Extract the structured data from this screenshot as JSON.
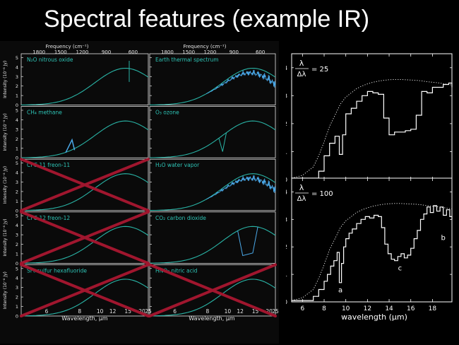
{
  "slide": {
    "title": "Spectral features (example IR)"
  },
  "colors": {
    "background": "#000000",
    "left_bg": "#0a0a0a",
    "axis": "#e6e6e6",
    "curve": "#29b3a5",
    "spectrum": "#4aa8e8",
    "cross": "#a0162e",
    "label": "#2ec4b6"
  },
  "left_figure": {
    "top_axis_label": "Frequency (cm⁻¹)",
    "top_ticks": [
      "1800",
      "1500",
      "1200",
      "900",
      "600"
    ],
    "bottom_axis_label": "Wavelength, μm",
    "bottom_ticks": [
      "6",
      "8",
      "10",
      "12",
      "15",
      "20",
      "25"
    ],
    "ylabel": "Intensity (10⁻⁸ Jy)",
    "y_ticks": [
      "0",
      "1",
      "2",
      "3",
      "4",
      "5"
    ],
    "panels": [
      {
        "label": "N₂O nitrous oxide",
        "crossed": false
      },
      {
        "label": "Earth thermal spectrum",
        "crossed": false
      },
      {
        "label": "CH₄ methane",
        "crossed": false
      },
      {
        "label": "O₃ ozone",
        "crossed": false
      },
      {
        "label": "CFC-11 freon-11",
        "crossed": true
      },
      {
        "label": "H₂O water vapor",
        "crossed": false
      },
      {
        "label": "CFC-12 freon-12",
        "crossed": true
      },
      {
        "label": "CO₂ carbon dioxide",
        "crossed": false
      },
      {
        "label": "SF₆ sulfur hexafluoride",
        "crossed": true
      },
      {
        "label": "HNO₃ nitric acid",
        "crossed": true
      }
    ]
  },
  "chart_data": {
    "type": "line",
    "xlabel": "wavelength (μm)",
    "x_ticks": [
      "6",
      "8",
      "10",
      "12",
      "14",
      "16",
      "18"
    ],
    "xlim": [
      5,
      19.8
    ],
    "ylim": [
      0,
      4.5
    ],
    "y_ticks": [
      "0",
      "1",
      "2",
      "3",
      "4"
    ],
    "panels": [
      {
        "resolution_label_num": "λ",
        "resolution_label_den": "Δλ",
        "resolution_value": "= 25",
        "series": [
          {
            "x": [
              5.0,
              6.0,
              7.0,
              7.5,
              8.0,
              8.5,
              9.0,
              9.5,
              10.0,
              10.5,
              11.0,
              11.5,
              12.0,
              12.5,
              13.0,
              13.5,
              14.0,
              14.5,
              15.0,
              15.5,
              16.0,
              16.5,
              17.0,
              17.5,
              18.0,
              18.5,
              19.0,
              19.5,
              19.8
            ],
            "y": [
              0.05,
              0.15,
              0.45,
              0.85,
              1.35,
              1.9,
              2.3,
              2.7,
              2.95,
              3.1,
              3.25,
              3.35,
              3.42,
              3.48,
              3.52,
              3.55,
              3.57,
              3.58,
              3.58,
              3.57,
              3.56,
              3.55,
              3.53,
              3.5,
              3.48,
              3.46,
              3.43,
              3.4,
              3.38
            ],
            "style": "dotted"
          },
          {
            "x": [
              5.0,
              7.5,
              8.0,
              8.5,
              9.0,
              9.4,
              9.7,
              10.0,
              10.5,
              11.0,
              11.5,
              12.0,
              12.5,
              13.0,
              13.5,
              14.0,
              14.5,
              15.0,
              15.5,
              16.0,
              16.5,
              17.0,
              17.5,
              18.0,
              18.5,
              19.0,
              19.5,
              19.8
            ],
            "y": [
              0.05,
              0.3,
              0.85,
              1.3,
              1.55,
              0.9,
              1.6,
              2.35,
              2.55,
              2.8,
              3.0,
              3.15,
              3.1,
              3.05,
              2.2,
              1.6,
              1.7,
              1.7,
              1.75,
              1.8,
              2.3,
              3.15,
              3.1,
              3.3,
              3.3,
              3.4,
              3.45,
              3.3
            ],
            "style": "step"
          }
        ],
        "annotations": []
      },
      {
        "resolution_label_num": "λ",
        "resolution_label_den": "Δλ",
        "resolution_value": "= 100",
        "series": [
          {
            "x": [
              5.0,
              6.0,
              7.0,
              7.5,
              8.0,
              8.5,
              9.0,
              9.5,
              10.0,
              10.5,
              11.0,
              11.5,
              12.0,
              12.5,
              13.0,
              13.5,
              14.0,
              14.5,
              15.0,
              15.5,
              16.0,
              16.5,
              17.0,
              17.5,
              18.0,
              18.5,
              19.0,
              19.5,
              19.8
            ],
            "y": [
              0.05,
              0.15,
              0.45,
              0.85,
              1.35,
              1.9,
              2.3,
              2.7,
              2.95,
              3.1,
              3.25,
              3.35,
              3.42,
              3.48,
              3.52,
              3.55,
              3.57,
              3.58,
              3.58,
              3.57,
              3.56,
              3.55,
              3.53,
              3.5,
              3.48,
              3.46,
              3.43,
              3.4,
              3.38
            ],
            "style": "dotted"
          },
          {
            "x": [
              5.0,
              7.0,
              7.5,
              8.0,
              8.3,
              8.6,
              8.9,
              9.2,
              9.4,
              9.6,
              9.8,
              10.0,
              10.3,
              10.6,
              11.0,
              11.4,
              11.8,
              12.2,
              12.6,
              13.0,
              13.3,
              13.6,
              13.9,
              14.2,
              14.5,
              14.8,
              15.1,
              15.4,
              15.7,
              16.0,
              16.3,
              16.6,
              16.9,
              17.2,
              17.5,
              17.8,
              18.1,
              18.4,
              18.7,
              19.0,
              19.3,
              19.6,
              19.8
            ],
            "y": [
              0.05,
              0.2,
              0.45,
              0.75,
              1.0,
              1.3,
              1.5,
              1.8,
              0.7,
              1.4,
              2.0,
              2.3,
              2.5,
              2.65,
              2.85,
              3.0,
              3.1,
              3.05,
              3.15,
              3.1,
              2.7,
              2.1,
              1.75,
              1.55,
              1.5,
              1.65,
              1.75,
              1.6,
              1.7,
              1.95,
              2.3,
              2.6,
              3.0,
              3.2,
              3.45,
              3.25,
              3.5,
              3.3,
              3.45,
              3.15,
              3.35,
              3.1,
              3.0
            ],
            "style": "step"
          }
        ],
        "annotations": [
          {
            "text": "a",
            "x": 9.5,
            "y": 0.35
          },
          {
            "text": "c",
            "x": 15.0,
            "y": 1.15
          },
          {
            "text": "b",
            "x": 19.0,
            "y": 2.25
          }
        ]
      }
    ]
  }
}
